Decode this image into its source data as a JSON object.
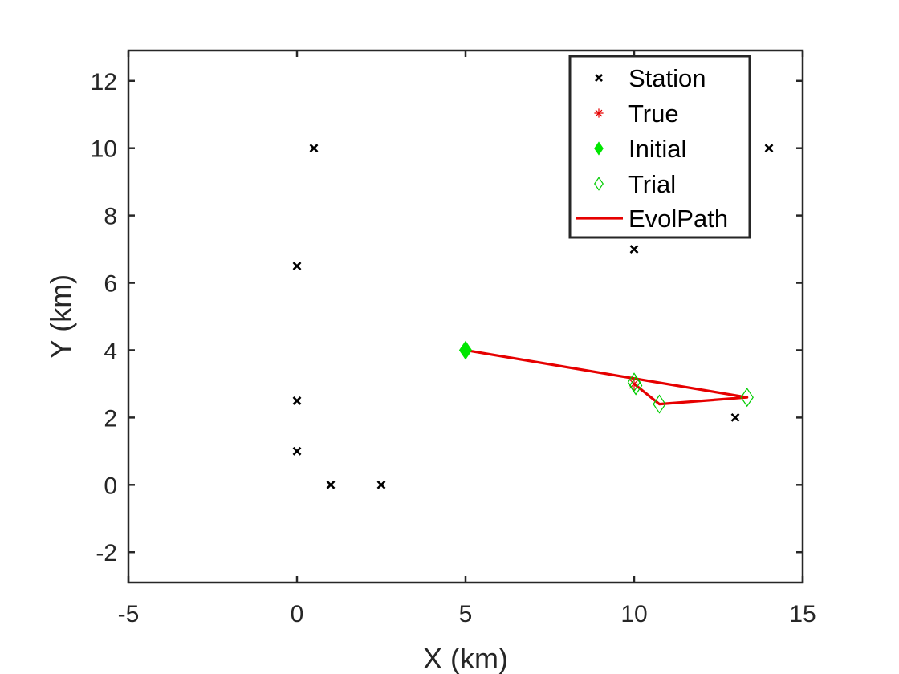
{
  "chart_data": {
    "type": "scatter",
    "title": "",
    "xlabel": "X (km)",
    "ylabel": "Y (km)",
    "xlim": [
      -5,
      15
    ],
    "ylim": [
      -2.9,
      12.9
    ],
    "xticks": [
      -5,
      0,
      5,
      10,
      15
    ],
    "yticks": [
      -2,
      0,
      2,
      4,
      6,
      8,
      10,
      12
    ],
    "grid": false,
    "legend_position": "top-right",
    "series": [
      {
        "name": "Station",
        "marker": "x",
        "color": "#000000",
        "points": [
          [
            0.5,
            10
          ],
          [
            0,
            6.5
          ],
          [
            0,
            2.5
          ],
          [
            0,
            1
          ],
          [
            1,
            0
          ],
          [
            2.5,
            0
          ],
          [
            10,
            7
          ],
          [
            14,
            10
          ],
          [
            13,
            2
          ]
        ]
      },
      {
        "name": "True",
        "marker": "asterisk",
        "color": "#e60000",
        "points": [
          [
            10,
            3
          ]
        ]
      },
      {
        "name": "Initial",
        "marker": "diamond-filled",
        "color": "#00e600",
        "points": [
          [
            5,
            4
          ]
        ]
      },
      {
        "name": "Trial",
        "marker": "diamond-open",
        "color": "#00cc00",
        "points": [
          [
            10,
            3.05
          ],
          [
            10.05,
            2.95
          ],
          [
            10.75,
            2.4
          ],
          [
            13.35,
            2.6
          ]
        ]
      },
      {
        "name": "EvolPath",
        "marker": "line",
        "color": "#e60000",
        "points": [
          [
            5,
            4
          ],
          [
            13.35,
            2.6
          ],
          [
            10.75,
            2.4
          ],
          [
            10,
            3
          ]
        ]
      }
    ]
  }
}
